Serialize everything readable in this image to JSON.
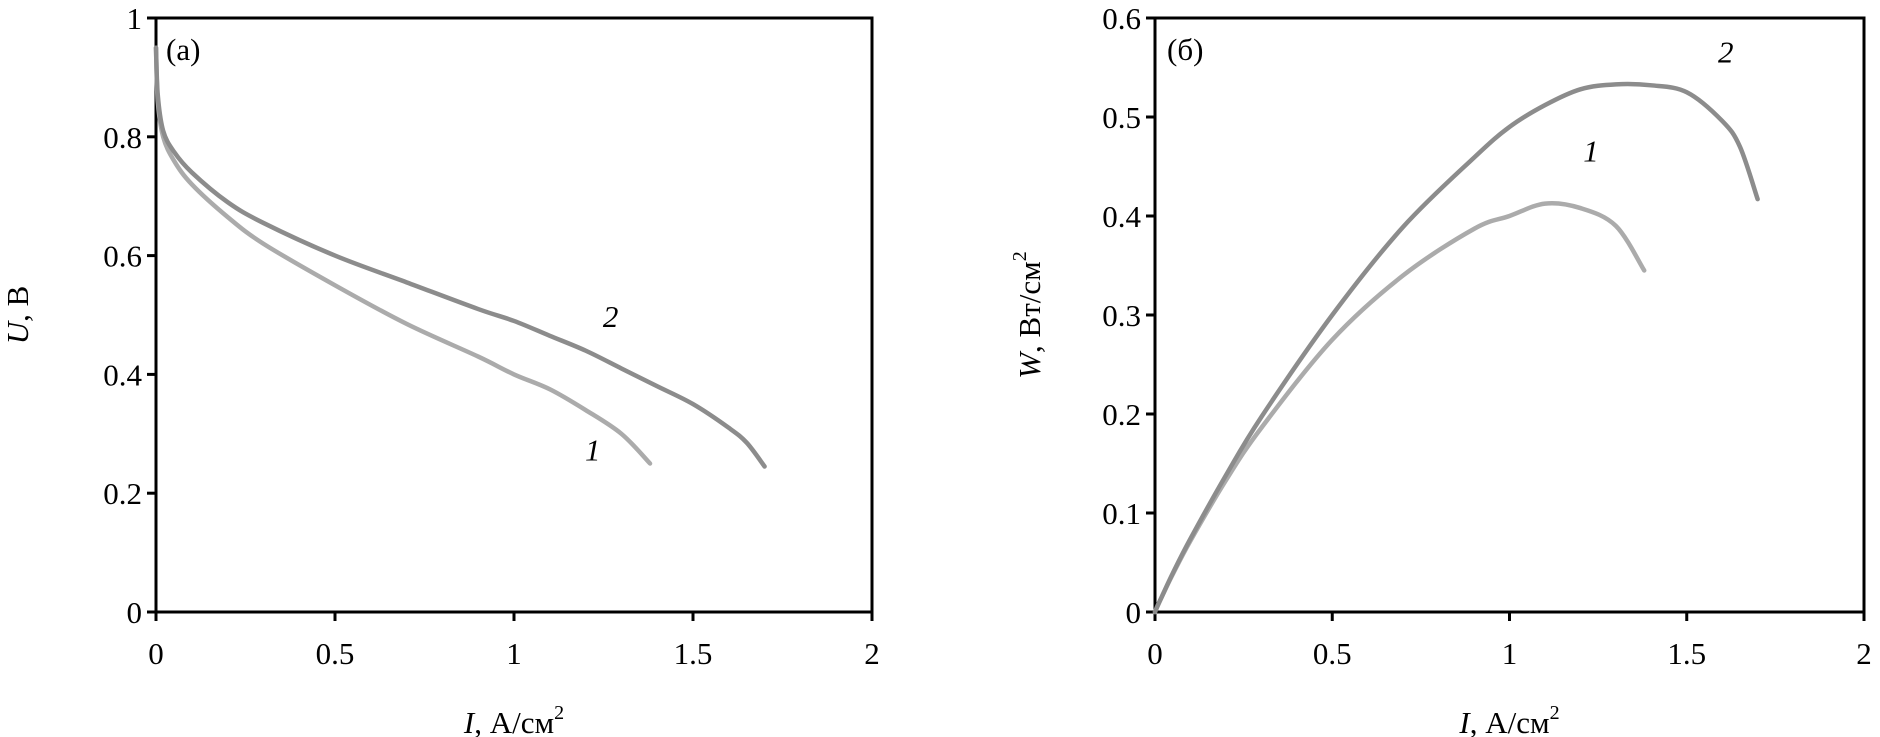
{
  "chart_data": [
    {
      "type": "line",
      "panel_label": "(a)",
      "xlabel": {
        "var": "I",
        "unit": ", А/см",
        "sup": "2"
      },
      "ylabel": {
        "var": "U",
        "unit": ", В",
        "sup": ""
      },
      "xlim": [
        0,
        2
      ],
      "ylim": [
        0,
        1
      ],
      "xticks": [
        "0",
        "0.5",
        "1",
        "1.5",
        "2"
      ],
      "yticks": [
        "0",
        "0.2",
        "0.4",
        "0.6",
        "0.8",
        "1"
      ],
      "grid": false,
      "series": [
        {
          "name": "1",
          "color": "#ababab",
          "x": [
            0,
            0.005,
            0.02,
            0.05,
            0.1,
            0.2,
            0.3,
            0.5,
            0.7,
            0.9,
            1.0,
            1.1,
            1.2,
            1.3,
            1.38
          ],
          "y": [
            0.95,
            0.86,
            0.8,
            0.76,
            0.72,
            0.665,
            0.62,
            0.55,
            0.485,
            0.43,
            0.4,
            0.375,
            0.34,
            0.3,
            0.25
          ]
        },
        {
          "name": "2",
          "color": "#8c8c8c",
          "x": [
            0,
            0.005,
            0.02,
            0.05,
            0.1,
            0.2,
            0.3,
            0.5,
            0.7,
            0.9,
            1.0,
            1.1,
            1.2,
            1.3,
            1.4,
            1.5,
            1.6,
            1.65,
            1.7
          ],
          "y": [
            0.95,
            0.87,
            0.81,
            0.775,
            0.74,
            0.69,
            0.655,
            0.6,
            0.555,
            0.51,
            0.49,
            0.465,
            0.44,
            0.41,
            0.38,
            0.35,
            0.31,
            0.285,
            0.245
          ]
        }
      ]
    },
    {
      "type": "line",
      "panel_label": "(б)",
      "xlabel": {
        "var": "I",
        "unit": ", А/см",
        "sup": "2"
      },
      "ylabel": {
        "var": "W",
        "unit": ", Вт/см",
        "sup": "2"
      },
      "xlim": [
        0,
        2
      ],
      "ylim": [
        0,
        0.6
      ],
      "xticks": [
        "0",
        "0.5",
        "1",
        "1.5",
        "2"
      ],
      "yticks": [
        "0",
        "0.1",
        "0.2",
        "0.3",
        "0.4",
        "0.5",
        "0.6"
      ],
      "grid": false,
      "series": [
        {
          "name": "1",
          "color": "#ababab",
          "x": [
            0,
            0.005,
            0.02,
            0.05,
            0.1,
            0.2,
            0.3,
            0.5,
            0.7,
            0.9,
            1.0,
            1.1,
            1.2,
            1.3,
            1.38
          ],
          "y": [
            0,
            0.0043,
            0.016,
            0.038,
            0.072,
            0.133,
            0.186,
            0.275,
            0.34,
            0.387,
            0.4,
            0.4125,
            0.408,
            0.39,
            0.345
          ]
        },
        {
          "name": "2",
          "color": "#8c8c8c",
          "x": [
            0,
            0.005,
            0.02,
            0.05,
            0.1,
            0.2,
            0.3,
            0.5,
            0.7,
            0.9,
            1.0,
            1.1,
            1.2,
            1.3,
            1.4,
            1.5,
            1.6,
            1.65,
            1.7
          ],
          "y": [
            0,
            0.0044,
            0.016,
            0.039,
            0.074,
            0.138,
            0.197,
            0.3,
            0.389,
            0.459,
            0.49,
            0.512,
            0.528,
            0.533,
            0.532,
            0.525,
            0.496,
            0.47,
            0.417
          ]
        }
      ]
    }
  ]
}
